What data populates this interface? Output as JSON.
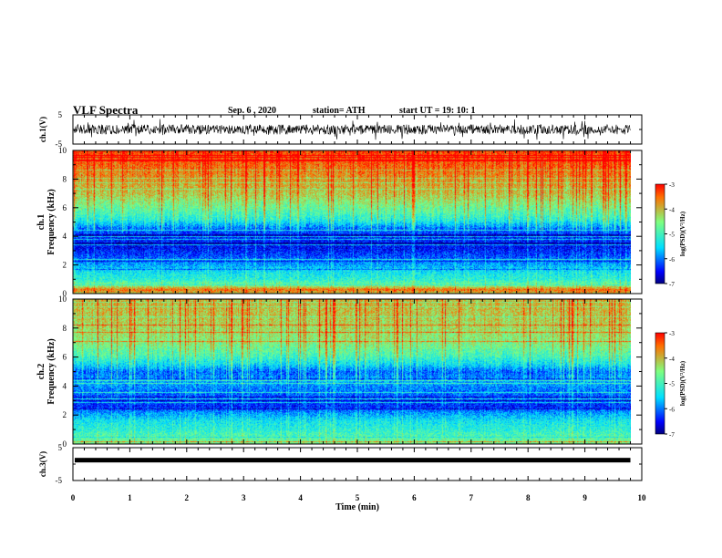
{
  "header": {
    "title": "VLF Spectra",
    "date": "Sep. 6  , 2020",
    "station": "station= ATH",
    "start": "start  UT  =   19: 10: 1"
  },
  "chart_data": [
    {
      "type": "line",
      "panel": "ch1-waveform",
      "ylabel": "ch.1(V)",
      "ylim": [
        -5,
        5
      ],
      "yticks": [
        "5",
        "-5"
      ],
      "xlim": [
        0,
        10
      ],
      "description_of_trace": "noisy waveform centred near 0 V with amplitude about ±2 V, spiking to about ±4 V",
      "data_end_min": 9.8
    },
    {
      "type": "heatmap",
      "panel": "ch1-spectrogram",
      "ylabel": "ch.1\nFrequency (kHz)",
      "ylabel_line1": "ch.1",
      "ylabel_line2": "Frequency (kHz)",
      "ylim": [
        0,
        10
      ],
      "yticks": [
        "0",
        "2",
        "4",
        "6",
        "8",
        "10"
      ],
      "xlim": [
        0,
        10
      ],
      "data_end_min": 9.8,
      "colorbar": {
        "label": "log(PSD)(V²/Hz)",
        "range": [
          -7,
          -3
        ],
        "ticks": [
          "-3",
          "-4",
          "-5",
          "-6",
          "-7"
        ]
      },
      "profile_khz_to_logpsd": [
        [
          0,
          -4.2
        ],
        [
          0.3,
          -3.5
        ],
        [
          0.6,
          -4.6
        ],
        [
          1.0,
          -5.2
        ],
        [
          1.5,
          -5.4
        ],
        [
          2.0,
          -5.8
        ],
        [
          2.6,
          -6.2
        ],
        [
          3.2,
          -6.5
        ],
        [
          4.0,
          -6.4
        ],
        [
          4.6,
          -6.0
        ],
        [
          5.2,
          -5.2
        ],
        [
          6.0,
          -4.7
        ],
        [
          7.0,
          -4.1
        ],
        [
          8.0,
          -3.8
        ],
        [
          9.0,
          -3.5
        ],
        [
          10.0,
          -3.3
        ]
      ]
    },
    {
      "type": "heatmap",
      "panel": "ch2-spectrogram",
      "ylabel": "ch.2\nFrequency (kHz)",
      "ylabel_line1": "ch.2",
      "ylabel_line2": "Frequency (kHz)",
      "ylim": [
        0,
        10
      ],
      "yticks": [
        "0",
        "2",
        "4",
        "6",
        "8",
        "10"
      ],
      "xlim": [
        0,
        10
      ],
      "data_end_min": 9.8,
      "colorbar": {
        "label": "log(PSD)(V²/Hz)",
        "range": [
          -7,
          -3
        ],
        "ticks": [
          "-3",
          "-4",
          "-5",
          "-6",
          "-7"
        ]
      },
      "profile_khz_to_logpsd": [
        [
          0,
          -4.6
        ],
        [
          0.4,
          -4.8
        ],
        [
          1.0,
          -5.2
        ],
        [
          1.6,
          -5.4
        ],
        [
          2.2,
          -5.9
        ],
        [
          2.6,
          -6.4
        ],
        [
          3.2,
          -6.2
        ],
        [
          3.8,
          -6.0
        ],
        [
          4.4,
          -5.8
        ],
        [
          5.0,
          -6.1
        ],
        [
          5.6,
          -5.4
        ],
        [
          6.2,
          -4.9
        ],
        [
          7.0,
          -4.5
        ],
        [
          8.0,
          -4.3
        ],
        [
          9.0,
          -4.1
        ],
        [
          10.0,
          -4.0
        ]
      ]
    },
    {
      "type": "line",
      "panel": "ch3-waveform",
      "ylabel": "ch.3(V)",
      "ylim": [
        -5,
        5
      ],
      "yticks": [
        "5",
        "-5"
      ],
      "xlim": [
        0,
        10
      ],
      "xlabel": "Time (min)",
      "xticks": [
        "0",
        "1",
        "2",
        "3",
        "4",
        "5",
        "6",
        "7",
        "8",
        "9",
        "10"
      ],
      "constant_level_v": 1.2,
      "data_end_min": 9.8
    }
  ]
}
